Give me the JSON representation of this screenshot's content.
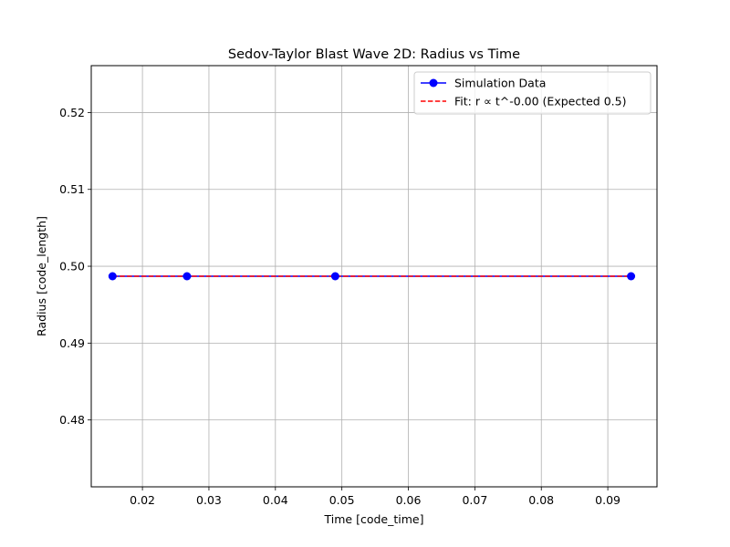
{
  "chart_data": {
    "type": "line",
    "title": "Sedov-Taylor Blast Wave 2D: Radius vs Time",
    "xlabel": "Time [code_time]",
    "ylabel": "Radius [code_length]",
    "xlim": [
      0.0123,
      0.0974
    ],
    "ylim": [
      0.4713,
      0.5261
    ],
    "xticks": [
      0.02,
      0.03,
      0.04,
      0.05,
      0.06,
      0.07,
      0.08,
      0.09
    ],
    "yticks": [
      0.48,
      0.49,
      0.5,
      0.51,
      0.52
    ],
    "xtick_labels": [
      "0.02",
      "0.03",
      "0.04",
      "0.05",
      "0.06",
      "0.07",
      "0.08",
      "0.09"
    ],
    "ytick_labels": [
      "0.48",
      "0.49",
      "0.50",
      "0.51",
      "0.52"
    ],
    "grid": true,
    "legend_position": "top-right",
    "series": [
      {
        "name": "Simulation Data",
        "style": "solid line with circle markers",
        "color": "#0000ff",
        "x": [
          0.0155,
          0.0267,
          0.049,
          0.0935
        ],
        "y": [
          0.4987,
          0.4987,
          0.4987,
          0.4987
        ]
      },
      {
        "name": "Fit: r ∝ t^-0.00 (Expected 0.5)",
        "style": "dashed line",
        "color": "#ff0000",
        "x": [
          0.0155,
          0.0935
        ],
        "y": [
          0.4987,
          0.4987
        ]
      }
    ]
  }
}
